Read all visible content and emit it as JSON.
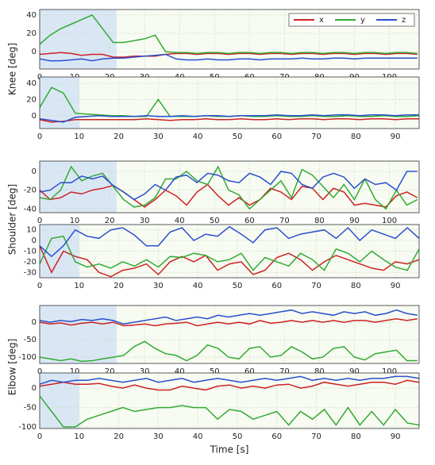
{
  "chart_data": [
    {
      "type": "line",
      "ylabel": "Knee [deg]",
      "legend": "upper right",
      "grid": true,
      "shaded_span": [
        0,
        22
      ],
      "xlim": [
        0,
        108.5
      ],
      "ylim": [
        -19,
        46
      ],
      "xticks": [
        0,
        10,
        20,
        30,
        40,
        50,
        60,
        70,
        80,
        90,
        100
      ],
      "yticks": [
        0,
        20,
        40
      ],
      "x": [
        0,
        3,
        6,
        9,
        12,
        15,
        18,
        21,
        24,
        27,
        30,
        33,
        36,
        39,
        42,
        45,
        48,
        51,
        54,
        57,
        60,
        63,
        66,
        69,
        72,
        75,
        78,
        81,
        84,
        87,
        90,
        93,
        96,
        99,
        102,
        105,
        108
      ],
      "series": [
        {
          "name": "x",
          "color": "#cc2222",
          "values": [
            -3,
            -2,
            -1,
            -2,
            -4,
            -3,
            -3,
            -6,
            -6,
            -5,
            -5,
            -5,
            -3,
            -2,
            -2,
            -3,
            -2,
            -2,
            -3,
            -2,
            -2,
            -3,
            -2,
            -2,
            -3,
            -2,
            -2,
            -3,
            -2,
            -2,
            -3,
            -2,
            -2,
            -3,
            -2,
            -2,
            -3
          ]
        },
        {
          "name": "y",
          "color": "#33aa33",
          "values": [
            8,
            18,
            25,
            30,
            35,
            40,
            25,
            10,
            10,
            12,
            14,
            18,
            0,
            -1,
            -1,
            -2,
            -1,
            -1,
            -2,
            -1,
            -1,
            -2,
            -1,
            -1,
            -2,
            -1,
            -1,
            -2,
            -1,
            -1,
            -2,
            -1,
            -1,
            -2,
            -1,
            -1,
            -2
          ]
        },
        {
          "name": "z",
          "color": "#2a4fcc",
          "values": [
            -8,
            -10,
            -10,
            -9,
            -8,
            -10,
            -8,
            -7,
            -7,
            -6,
            -5,
            -4,
            -3,
            -8,
            -9,
            -9,
            -8,
            -9,
            -9,
            -8,
            -8,
            -9,
            -8,
            -8,
            -8,
            -7,
            -8,
            -8,
            -7,
            -7,
            -8,
            -7,
            -7,
            -7,
            -7,
            -7,
            -7
          ]
        }
      ]
    },
    {
      "type": "line",
      "grid": true,
      "shaded_span": [
        0,
        10
      ],
      "xlim": [
        0,
        96
      ],
      "ylim": [
        -16,
        48
      ],
      "xticks": [
        0,
        10,
        20,
        30,
        40,
        50,
        60,
        70,
        80,
        90
      ],
      "yticks": [
        0,
        20,
        40
      ],
      "x": [
        0,
        3,
        6,
        9,
        12,
        15,
        18,
        21,
        24,
        27,
        30,
        33,
        36,
        39,
        42,
        45,
        48,
        51,
        54,
        57,
        60,
        63,
        66,
        69,
        72,
        75,
        78,
        81,
        84,
        87,
        90,
        93,
        96
      ],
      "series": [
        {
          "color": "#cc2222",
          "values": [
            -5,
            -8,
            -7,
            -5,
            -5,
            -5,
            -5,
            -5,
            -5,
            -4,
            -5,
            -6,
            -5,
            -5,
            -4,
            -5,
            -5,
            -4,
            -5,
            -5,
            -4,
            -5,
            -4,
            -4,
            -5,
            -4,
            -4,
            -5,
            -4,
            -4,
            -5,
            -4,
            -4
          ]
        },
        {
          "color": "#33aa33",
          "values": [
            10,
            35,
            28,
            3,
            2,
            1,
            0,
            0,
            -1,
            -1,
            20,
            -1,
            -1,
            -1,
            0,
            -1,
            -1,
            0,
            -1,
            -1,
            0,
            -1,
            -1,
            0,
            -1,
            -1,
            0,
            -1,
            -1,
            0,
            -1,
            -1,
            0
          ]
        },
        {
          "color": "#2a4fcc",
          "values": [
            -4,
            -6,
            -8,
            -2,
            -1,
            0,
            -1,
            -1,
            -1,
            0,
            -1,
            -1,
            0,
            -1,
            0,
            0,
            -1,
            0,
            0,
            0,
            1,
            0,
            0,
            1,
            0,
            1,
            1,
            0,
            1,
            1,
            0,
            1,
            1
          ]
        }
      ]
    },
    {
      "type": "line",
      "ylabel": "Shoulder [deg]",
      "grid": true,
      "shaded_span": [
        0,
        22
      ],
      "xlim": [
        0,
        108.5
      ],
      "ylim": [
        -44,
        11
      ],
      "xticks": [
        0,
        10,
        20,
        30,
        40,
        50,
        60,
        70,
        80,
        90,
        100
      ],
      "yticks": [
        -40,
        -20,
        0
      ],
      "x": [
        0,
        3,
        6,
        9,
        12,
        15,
        18,
        21,
        24,
        27,
        30,
        33,
        36,
        39,
        42,
        45,
        48,
        51,
        54,
        57,
        60,
        63,
        66,
        69,
        72,
        75,
        78,
        81,
        84,
        87,
        90,
        93,
        96,
        99,
        102,
        105,
        108
      ],
      "series": [
        {
          "color": "#cc2222",
          "values": [
            -20,
            -30,
            -28,
            -22,
            -24,
            -20,
            -18,
            -15,
            -22,
            -30,
            -38,
            -30,
            -20,
            -26,
            -36,
            -22,
            -14,
            -26,
            -36,
            -28,
            -36,
            -30,
            -18,
            -22,
            -30,
            -16,
            -18,
            -30,
            -18,
            -22,
            -36,
            -34,
            -36,
            -38,
            -26,
            -22,
            -28
          ]
        },
        {
          "color": "#33aa33",
          "values": [
            -28,
            -30,
            -20,
            5,
            -10,
            -5,
            -2,
            -16,
            -30,
            -38,
            -36,
            -28,
            -8,
            -8,
            0,
            -10,
            -14,
            5,
            -20,
            -25,
            -40,
            -30,
            -20,
            -10,
            -28,
            2,
            -4,
            -16,
            -28,
            -14,
            -30,
            -8,
            -30,
            -40,
            -20,
            -36,
            -30
          ]
        },
        {
          "color": "#2a4fcc",
          "values": [
            -22,
            -20,
            -12,
            -12,
            -5,
            -8,
            -5,
            -15,
            -22,
            -30,
            -24,
            -14,
            -20,
            -6,
            -4,
            -12,
            -2,
            -4,
            -10,
            -12,
            -2,
            -6,
            -14,
            0,
            -2,
            -14,
            -18,
            -6,
            -2,
            -6,
            -18,
            -8,
            -14,
            -12,
            -20,
            0,
            0
          ]
        }
      ]
    },
    {
      "type": "line",
      "grid": true,
      "shaded_span": [
        0,
        10
      ],
      "xlim": [
        0,
        96
      ],
      "ylim": [
        -35,
        15
      ],
      "xticks": [
        0,
        10,
        20,
        30,
        40,
        50,
        60,
        70,
        80,
        90
      ],
      "yticks": [
        -30,
        -20,
        -10,
        0,
        10
      ],
      "x": [
        0,
        3,
        6,
        9,
        12,
        15,
        18,
        21,
        24,
        27,
        30,
        33,
        36,
        39,
        42,
        45,
        48,
        51,
        54,
        57,
        60,
        63,
        66,
        69,
        72,
        75,
        78,
        81,
        84,
        87,
        90,
        93,
        96
      ],
      "series": [
        {
          "color": "#cc2222",
          "values": [
            -5,
            -30,
            -10,
            -15,
            -18,
            -30,
            -34,
            -28,
            -26,
            -22,
            -32,
            -20,
            -15,
            -20,
            -14,
            -28,
            -22,
            -20,
            -32,
            -28,
            -16,
            -12,
            -18,
            -28,
            -20,
            -14,
            -18,
            -22,
            -26,
            -28,
            -20,
            -22,
            -18
          ]
        },
        {
          "color": "#33aa33",
          "values": [
            -22,
            2,
            4,
            -20,
            -25,
            -22,
            -26,
            -20,
            -24,
            -18,
            -25,
            -15,
            -16,
            -12,
            -14,
            -20,
            -18,
            -12,
            -28,
            -16,
            -20,
            -24,
            -12,
            -18,
            -28,
            -8,
            -12,
            -20,
            -10,
            -18,
            -25,
            -28,
            -8
          ]
        },
        {
          "color": "#2a4fcc",
          "values": [
            -5,
            -15,
            -5,
            10,
            4,
            2,
            10,
            12,
            5,
            -5,
            -5,
            8,
            12,
            0,
            6,
            4,
            13,
            6,
            -2,
            10,
            12,
            2,
            6,
            8,
            10,
            2,
            12,
            0,
            10,
            6,
            2,
            12,
            2
          ]
        }
      ]
    },
    {
      "type": "line",
      "ylabel": "Elbow [deg]",
      "grid": true,
      "shaded_span": [
        0,
        22
      ],
      "xlim": [
        0,
        108.5
      ],
      "ylim": [
        -118,
        48
      ],
      "xticks": [
        0,
        10,
        20,
        30,
        40,
        50,
        60,
        70,
        80,
        90,
        100
      ],
      "yticks": [
        -100,
        -50,
        0
      ],
      "x": [
        0,
        3,
        6,
        9,
        12,
        15,
        18,
        21,
        24,
        27,
        30,
        33,
        36,
        39,
        42,
        45,
        48,
        51,
        54,
        57,
        60,
        63,
        66,
        69,
        72,
        75,
        78,
        81,
        84,
        87,
        90,
        93,
        96,
        99,
        102,
        105,
        108
      ],
      "series": [
        {
          "color": "#cc2222",
          "values": [
            0,
            -5,
            -2,
            -8,
            -3,
            0,
            -5,
            0,
            -10,
            -8,
            -5,
            -10,
            -5,
            -3,
            0,
            -10,
            -5,
            0,
            -5,
            0,
            -5,
            5,
            -3,
            0,
            5,
            0,
            5,
            0,
            5,
            0,
            5,
            5,
            0,
            5,
            10,
            5,
            10
          ]
        },
        {
          "color": "#33aa33",
          "values": [
            -100,
            -105,
            -110,
            -105,
            -112,
            -110,
            -105,
            -100,
            -95,
            -70,
            -55,
            -75,
            -90,
            -95,
            -110,
            -95,
            -65,
            -75,
            -100,
            -105,
            -75,
            -70,
            -100,
            -95,
            -70,
            -85,
            -105,
            -100,
            -75,
            -70,
            -100,
            -108,
            -90,
            -85,
            -80,
            -110,
            -110
          ]
        },
        {
          "color": "#2a4fcc",
          "values": [
            5,
            0,
            5,
            2,
            8,
            5,
            10,
            5,
            -5,
            0,
            5,
            10,
            15,
            5,
            10,
            15,
            10,
            20,
            15,
            20,
            25,
            20,
            25,
            30,
            35,
            25,
            30,
            25,
            20,
            30,
            25,
            30,
            20,
            25,
            35,
            25,
            20
          ]
        }
      ]
    },
    {
      "type": "line",
      "xlabel": "Time [s]",
      "grid": true,
      "shaded_span": [
        0,
        10
      ],
      "xlim": [
        0,
        96
      ],
      "ylim": [
        -104,
        39
      ],
      "xticks": [
        0,
        10,
        20,
        30,
        40,
        50,
        60,
        70,
        80,
        90
      ],
      "yticks": [
        -100,
        -50,
        0
      ],
      "x": [
        0,
        3,
        6,
        9,
        12,
        15,
        18,
        21,
        24,
        27,
        30,
        33,
        36,
        39,
        42,
        45,
        48,
        51,
        54,
        57,
        60,
        63,
        66,
        69,
        72,
        75,
        78,
        81,
        84,
        87,
        90,
        93,
        96
      ],
      "series": [
        {
          "color": "#cc2222",
          "values": [
            5,
            10,
            15,
            10,
            10,
            12,
            5,
            0,
            8,
            0,
            -5,
            -5,
            5,
            0,
            -5,
            5,
            8,
            0,
            5,
            0,
            8,
            10,
            0,
            5,
            15,
            10,
            5,
            10,
            15,
            15,
            10,
            20,
            15
          ]
        },
        {
          "color": "#33aa33",
          "values": [
            -20,
            -60,
            -100,
            -100,
            -80,
            -70,
            -60,
            -50,
            -60,
            -55,
            -50,
            -50,
            -45,
            -50,
            -50,
            -80,
            -55,
            -60,
            -80,
            -70,
            -60,
            -95,
            -60,
            -80,
            -55,
            -95,
            -50,
            -95,
            -60,
            -95,
            -55,
            -90,
            -95
          ]
        },
        {
          "color": "#2a4fcc",
          "values": [
            10,
            20,
            15,
            20,
            20,
            25,
            20,
            15,
            20,
            25,
            15,
            20,
            25,
            15,
            20,
            25,
            20,
            15,
            20,
            25,
            20,
            25,
            30,
            20,
            25,
            20,
            25,
            20,
            25,
            25,
            30,
            30,
            25
          ]
        }
      ]
    }
  ]
}
